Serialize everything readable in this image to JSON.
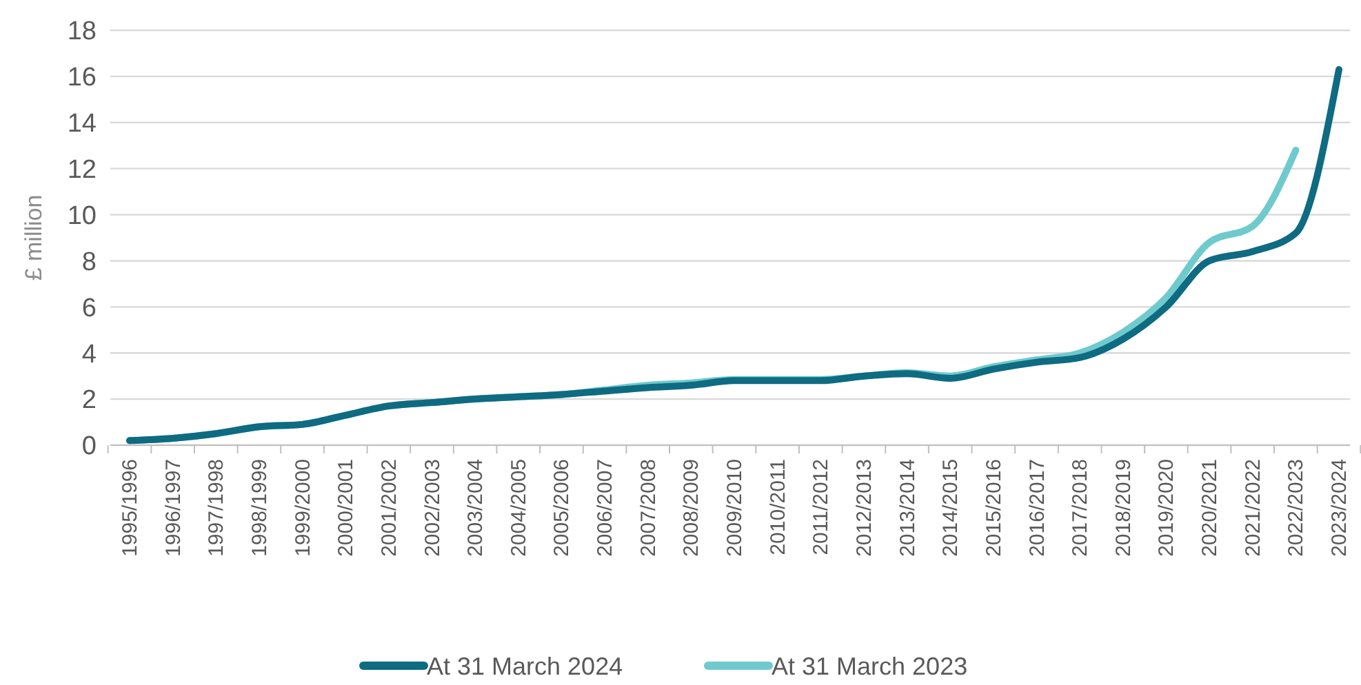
{
  "chart_data": {
    "type": "line",
    "ylabel": "£ million",
    "categories": [
      "1995/1996",
      "1996/1997",
      "1997/1998",
      "1998/1999",
      "1999/2000",
      "2000/2001",
      "2001/2002",
      "2002/2003",
      "2003/2004",
      "2004/2005",
      "2005/2006",
      "2006/2007",
      "2007/2008",
      "2008/2009",
      "2009/2010",
      "2010/2011",
      "2011/2012",
      "2012/2013",
      "2013/2014",
      "2014/2015",
      "2015/2016",
      "2016/2017",
      "2017/2018",
      "2018/2019",
      "2019/2020",
      "2020/2021",
      "2021/2022",
      "2022/2023",
      "2023/2024"
    ],
    "series": [
      {
        "name": "At 31 March 2024",
        "color": "#0e6b82",
        "values": [
          0.2,
          0.3,
          0.5,
          0.8,
          0.9,
          1.3,
          1.7,
          1.85,
          2.0,
          2.1,
          2.2,
          2.35,
          2.5,
          2.6,
          2.8,
          2.8,
          2.8,
          3.0,
          3.1,
          2.9,
          3.3,
          3.6,
          3.8,
          4.6,
          6.0,
          8.0,
          8.4,
          9.2,
          16.3
        ]
      },
      {
        "name": "At 31 March 2023",
        "color": "#6ecacc",
        "values": [
          0.2,
          0.3,
          0.5,
          0.8,
          0.9,
          1.3,
          1.7,
          1.85,
          2.0,
          2.1,
          2.2,
          2.4,
          2.6,
          2.7,
          2.85,
          2.85,
          2.85,
          3.0,
          3.15,
          3.0,
          3.4,
          3.7,
          4.0,
          4.9,
          6.4,
          8.8,
          9.5,
          12.8,
          null
        ]
      }
    ],
    "ylim": [
      0,
      18
    ],
    "yticks": [
      0,
      2,
      4,
      6,
      8,
      10,
      12,
      14,
      16,
      18
    ],
    "grid": "y",
    "legend": "bottom",
    "marker": "none",
    "line_style": "solid"
  }
}
